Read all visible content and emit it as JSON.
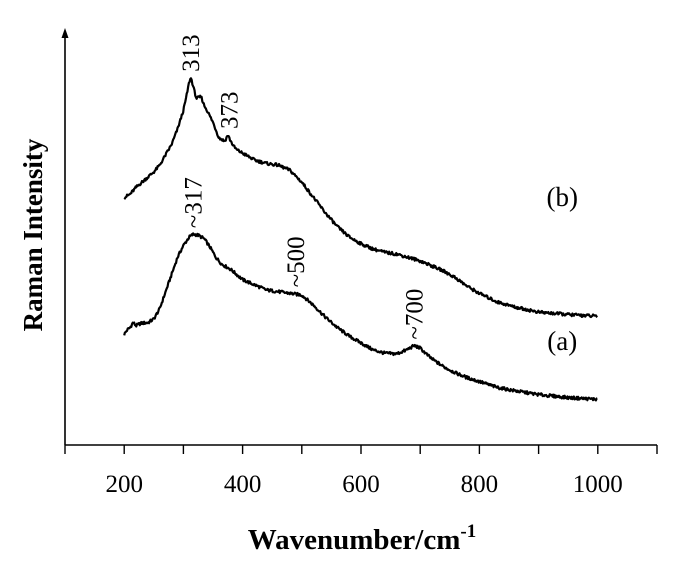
{
  "chart_data": {
    "type": "line",
    "title": "",
    "xlabel": "Wavenumber/cm",
    "xlabel_superscript": "-1",
    "ylabel": "Raman Intensity",
    "xlim": [
      100,
      1100
    ],
    "ylim": [
      0,
      100
    ],
    "x_ticks": [
      200,
      400,
      600,
      800,
      1000
    ],
    "x_ticks_minor": [
      100,
      300,
      500,
      700,
      900,
      1100
    ],
    "y_ticks_labeled": false,
    "grid": false,
    "legend": "none",
    "line_color": "#000000",
    "series": [
      {
        "name": "(a)",
        "x": [
          200,
          205,
          210,
          215,
          220,
          225,
          230,
          240,
          250,
          260,
          270,
          280,
          290,
          300,
          310,
          317,
          325,
          335,
          345,
          355,
          365,
          380,
          400,
          420,
          440,
          460,
          480,
          500,
          520,
          540,
          560,
          580,
          600,
          620,
          640,
          660,
          675,
          690,
          700,
          710,
          720,
          740,
          760,
          780,
          800,
          830,
          860,
          900,
          950,
          1000
        ],
        "y": [
          26.5,
          27.8,
          28.5,
          30.0,
          29.0,
          29.5,
          29.8,
          29.9,
          31.0,
          34.0,
          39.0,
          44.0,
          49.0,
          52.5,
          55.0,
          55.8,
          55.5,
          54.5,
          52.0,
          49.0,
          47.0,
          45.5,
          42.5,
          41.0,
          39.5,
          39.0,
          38.5,
          38.0,
          35.0,
          31.5,
          28.5,
          26.0,
          24.0,
          22.0,
          21.0,
          20.8,
          21.8,
          23.2,
          22.5,
          20.8,
          19.3,
          17.0,
          15.2,
          13.8,
          12.7,
          11.0,
          10.0,
          8.9,
          8.0,
          7.5
        ]
      },
      {
        "name": "(b)",
        "x": [
          200,
          210,
          220,
          230,
          240,
          250,
          260,
          270,
          280,
          290,
          300,
          305,
          310,
          313,
          318,
          322,
          330,
          335,
          340,
          350,
          360,
          370,
          375,
          380,
          385,
          390,
          400,
          420,
          440,
          460,
          480,
          500,
          520,
          540,
          560,
          580,
          600,
          620,
          640,
          660,
          680,
          700,
          720,
          740,
          760,
          780,
          800,
          830,
          860,
          900,
          950,
          1000
        ],
        "y": [
          66.5,
          67.5,
          69.5,
          71.0,
          72.5,
          74.0,
          76.0,
          79.0,
          82.0,
          86.5,
          92.0,
          96.0,
          100.5,
          101.5,
          98.0,
          95.5,
          96.0,
          93.5,
          92.0,
          88.5,
          84.0,
          83.0,
          84.8,
          83.0,
          81.5,
          80.5,
          79.5,
          77.5,
          76.5,
          76.0,
          74.5,
          71.0,
          66.5,
          62.0,
          58.0,
          55.0,
          53.0,
          51.5,
          50.5,
          50.0,
          49.0,
          48.0,
          46.5,
          45.0,
          43.0,
          40.5,
          38.5,
          36.0,
          34.5,
          33.0,
          32.3,
          31.8
        ]
      }
    ],
    "annotations": [
      {
        "text": "313",
        "x": 313,
        "y": 101.5,
        "rotation": -90
      },
      {
        "text": "373",
        "x": 378,
        "y": 84.8,
        "rotation": -90
      },
      {
        "text": "~317",
        "x": 317,
        "y": 55.8,
        "rotation": -90
      },
      {
        "text": "~500",
        "x": 490,
        "y": 38.5,
        "rotation": -90
      },
      {
        "text": "~700",
        "x": 690,
        "y": 23.2,
        "rotation": -90
      }
    ],
    "series_labels": [
      {
        "text": "(b)",
        "x": 940,
        "y": 64
      },
      {
        "text": "(a)",
        "x": 940,
        "y": 22
      }
    ]
  }
}
